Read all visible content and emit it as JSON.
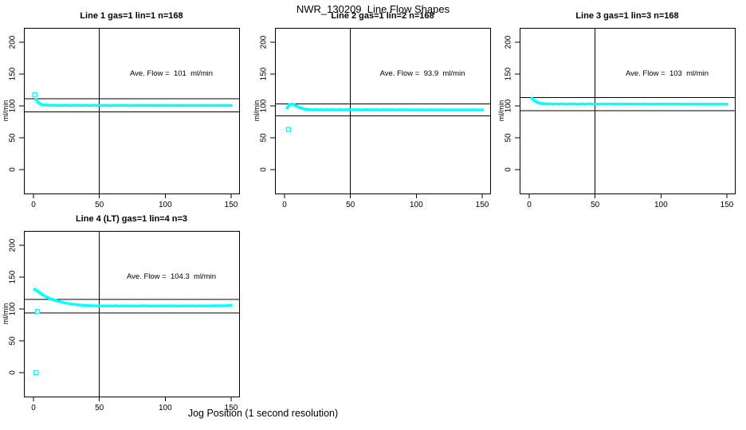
{
  "title": "NWR_130209  Line Flow Shapes",
  "xlabel": "Jog Position (1 second resolution)",
  "series_color": "#00FFFF",
  "axis_color": "#000000",
  "chart_data": [
    {
      "type": "scatter",
      "title": "Line 1 gas=1 lin=1 n=168",
      "annotation": "Ave. Flow =  101  ml/min",
      "ave_flow": 101,
      "ylabel": "ml/min",
      "marker": "open-square",
      "xticks": [
        0,
        50,
        100,
        150
      ],
      "yticks": [
        0,
        50,
        100,
        150,
        200
      ],
      "xlim": [
        -7,
        157
      ],
      "ylim": [
        -37,
        222
      ],
      "vline_x": 50,
      "hlines": [
        111.1,
        90.9
      ],
      "outliers": [
        [
          1,
          117.5
        ]
      ],
      "points": [
        [
          2,
          110
        ],
        [
          3,
          106.8
        ],
        [
          4,
          104.8
        ],
        [
          5,
          103.4
        ],
        [
          6,
          102.4
        ],
        [
          7,
          101.9
        ],
        [
          8,
          101.5
        ],
        [
          9,
          101.3
        ],
        [
          10,
          101.2
        ],
        [
          11,
          101.1
        ],
        [
          12,
          101.0
        ],
        [
          13,
          101.1
        ],
        [
          14,
          100.9
        ],
        [
          15,
          101.0
        ],
        [
          16,
          101.1
        ],
        [
          18,
          100.8
        ],
        [
          20,
          101.0
        ],
        [
          22,
          100.7
        ],
        [
          24,
          101.1
        ],
        [
          26,
          100.9
        ],
        [
          28,
          100.6
        ],
        [
          30,
          101.0
        ],
        [
          32,
          100.8
        ],
        [
          34,
          101.1
        ],
        [
          36,
          100.7
        ],
        [
          38,
          100.9
        ],
        [
          40,
          101.0
        ],
        [
          42,
          100.6
        ],
        [
          44,
          100.9
        ],
        [
          46,
          101.1
        ],
        [
          48,
          100.8
        ],
        [
          50,
          100.9
        ],
        [
          52,
          100.7
        ],
        [
          54,
          101.0
        ],
        [
          56,
          100.8
        ],
        [
          58,
          100.6
        ],
        [
          60,
          100.9
        ],
        [
          62,
          101.0
        ],
        [
          64,
          100.7
        ],
        [
          66,
          100.9
        ],
        [
          68,
          100.8
        ],
        [
          70,
          101.0
        ],
        [
          72,
          100.6
        ],
        [
          74,
          100.9
        ],
        [
          76,
          100.8
        ],
        [
          78,
          101.0
        ],
        [
          80,
          100.7
        ],
        [
          82,
          100.9
        ],
        [
          84,
          100.6
        ],
        [
          86,
          100.8
        ],
        [
          88,
          101.0
        ],
        [
          90,
          100.7
        ],
        [
          92,
          100.9
        ],
        [
          94,
          100.8
        ],
        [
          96,
          100.6
        ],
        [
          98,
          100.9
        ],
        [
          100,
          100.8
        ],
        [
          102,
          100.7
        ],
        [
          104,
          100.9
        ],
        [
          106,
          100.6
        ],
        [
          108,
          100.8
        ],
        [
          110,
          100.9
        ],
        [
          112,
          100.7
        ],
        [
          114,
          100.8
        ],
        [
          116,
          100.6
        ],
        [
          118,
          100.9
        ],
        [
          120,
          100.7
        ],
        [
          122,
          100.8
        ],
        [
          124,
          100.6
        ],
        [
          126,
          100.9
        ],
        [
          128,
          100.8
        ],
        [
          130,
          100.6
        ],
        [
          132,
          100.8
        ],
        [
          134,
          100.7
        ],
        [
          136,
          100.9
        ],
        [
          138,
          100.6
        ],
        [
          140,
          100.8
        ],
        [
          142,
          100.7
        ],
        [
          144,
          100.9
        ],
        [
          146,
          100.6
        ],
        [
          148,
          100.8
        ],
        [
          150,
          100.7
        ]
      ]
    },
    {
      "type": "scatter",
      "title": "Line 2 gas=1 lin=2 n=168",
      "annotation": "Ave. Flow =  93.9  ml/min",
      "ave_flow": 93.9,
      "ylabel": "ml/min",
      "marker": "open-square",
      "xticks": [
        0,
        50,
        100,
        150
      ],
      "yticks": [
        0,
        50,
        100,
        150,
        200
      ],
      "xlim": [
        -7,
        157
      ],
      "ylim": [
        -37,
        222
      ],
      "vline_x": 50,
      "hlines": [
        103.3,
        84.5
      ],
      "outliers": [
        [
          3,
          63
        ]
      ],
      "points": [
        [
          2,
          97
        ],
        [
          3,
          99.5
        ],
        [
          4,
          101.8
        ],
        [
          5,
          103
        ],
        [
          6,
          102.6
        ],
        [
          7,
          101.8
        ],
        [
          8,
          100.8
        ],
        [
          9,
          99.8
        ],
        [
          10,
          98.8
        ],
        [
          11,
          97.9
        ],
        [
          12,
          97.1
        ],
        [
          13,
          96.4
        ],
        [
          14,
          95.8
        ],
        [
          15,
          95.3
        ],
        [
          16,
          94.9
        ],
        [
          17,
          94.6
        ],
        [
          18,
          94.4
        ],
        [
          19,
          94.2
        ],
        [
          20,
          94.1
        ],
        [
          22,
          93.9
        ],
        [
          24,
          94.2
        ],
        [
          26,
          93.8
        ],
        [
          28,
          94.0
        ],
        [
          30,
          93.7
        ],
        [
          32,
          94.0
        ],
        [
          34,
          93.8
        ],
        [
          36,
          94.1
        ],
        [
          38,
          93.7
        ],
        [
          40,
          93.9
        ],
        [
          42,
          94.0
        ],
        [
          44,
          93.7
        ],
        [
          46,
          93.9
        ],
        [
          48,
          94.1
        ],
        [
          50,
          93.8
        ],
        [
          52,
          93.9
        ],
        [
          54,
          93.7
        ],
        [
          56,
          94.0
        ],
        [
          58,
          93.8
        ],
        [
          60,
          93.9
        ],
        [
          62,
          94.1
        ],
        [
          64,
          93.7
        ],
        [
          66,
          93.9
        ],
        [
          68,
          93.8
        ],
        [
          70,
          94.0
        ],
        [
          72,
          93.7
        ],
        [
          74,
          93.9
        ],
        [
          76,
          93.8
        ],
        [
          78,
          94.0
        ],
        [
          80,
          93.7
        ],
        [
          82,
          93.9
        ],
        [
          84,
          93.6
        ],
        [
          86,
          93.8
        ],
        [
          88,
          94.0
        ],
        [
          90,
          93.7
        ],
        [
          92,
          93.9
        ],
        [
          94,
          93.8
        ],
        [
          96,
          93.6
        ],
        [
          98,
          93.9
        ],
        [
          100,
          93.8
        ],
        [
          102,
          93.7
        ],
        [
          104,
          93.9
        ],
        [
          106,
          93.6
        ],
        [
          108,
          93.8
        ],
        [
          110,
          93.9
        ],
        [
          112,
          93.7
        ],
        [
          114,
          93.8
        ],
        [
          116,
          93.6
        ],
        [
          118,
          93.9
        ],
        [
          120,
          93.7
        ],
        [
          122,
          93.8
        ],
        [
          124,
          93.6
        ],
        [
          126,
          93.9
        ],
        [
          128,
          93.8
        ],
        [
          130,
          93.6
        ],
        [
          132,
          93.8
        ],
        [
          134,
          93.7
        ],
        [
          136,
          93.9
        ],
        [
          138,
          93.6
        ],
        [
          140,
          93.8
        ],
        [
          142,
          93.7
        ],
        [
          144,
          93.9
        ],
        [
          146,
          93.6
        ],
        [
          148,
          93.8
        ],
        [
          150,
          93.7
        ]
      ]
    },
    {
      "type": "scatter",
      "title": "Line 3 gas=1 lin=3 n=168",
      "annotation": "Ave. Flow =  103  ml/min",
      "ave_flow": 103,
      "ylabel": "ml/min",
      "marker": "open-square",
      "xticks": [
        0,
        50,
        100,
        150
      ],
      "yticks": [
        0,
        50,
        100,
        150,
        200
      ],
      "xlim": [
        -7,
        157
      ],
      "ylim": [
        -37,
        222
      ],
      "vline_x": 50,
      "hlines": [
        113.3,
        92.7
      ],
      "outliers": [],
      "points": [
        [
          2,
          112
        ],
        [
          3,
          110
        ],
        [
          4,
          108.2
        ],
        [
          5,
          106.8
        ],
        [
          6,
          105.8
        ],
        [
          7,
          105
        ],
        [
          8,
          104.4
        ],
        [
          9,
          104
        ],
        [
          10,
          103.7
        ],
        [
          11,
          103.5
        ],
        [
          12,
          103.3
        ],
        [
          13,
          103.2
        ],
        [
          14,
          103.1
        ],
        [
          16,
          103.2
        ],
        [
          18,
          102.9
        ],
        [
          20,
          103.1
        ],
        [
          22,
          102.8
        ],
        [
          24,
          103.2
        ],
        [
          26,
          103.0
        ],
        [
          28,
          102.7
        ],
        [
          30,
          103.1
        ],
        [
          32,
          102.9
        ],
        [
          34,
          103.2
        ],
        [
          36,
          102.8
        ],
        [
          38,
          103.0
        ],
        [
          40,
          103.1
        ],
        [
          42,
          102.7
        ],
        [
          44,
          103.0
        ],
        [
          46,
          103.2
        ],
        [
          48,
          102.9
        ],
        [
          50,
          103.0
        ],
        [
          52,
          102.8
        ],
        [
          54,
          103.1
        ],
        [
          56,
          102.9
        ],
        [
          58,
          102.7
        ],
        [
          60,
          103.0
        ],
        [
          62,
          103.1
        ],
        [
          64,
          102.8
        ],
        [
          66,
          103.0
        ],
        [
          68,
          102.9
        ],
        [
          70,
          103.1
        ],
        [
          72,
          102.7
        ],
        [
          74,
          103.0
        ],
        [
          76,
          102.9
        ],
        [
          78,
          103.1
        ],
        [
          80,
          102.8
        ],
        [
          82,
          103.0
        ],
        [
          84,
          102.7
        ],
        [
          86,
          102.9
        ],
        [
          88,
          103.1
        ],
        [
          90,
          102.8
        ],
        [
          92,
          103.0
        ],
        [
          94,
          102.9
        ],
        [
          96,
          102.7
        ],
        [
          98,
          103.0
        ],
        [
          100,
          102.9
        ],
        [
          102,
          102.8
        ],
        [
          104,
          103.0
        ],
        [
          106,
          102.7
        ],
        [
          108,
          102.9
        ],
        [
          110,
          103.0
        ],
        [
          112,
          102.8
        ],
        [
          114,
          102.9
        ],
        [
          116,
          102.7
        ],
        [
          118,
          103.0
        ],
        [
          120,
          102.8
        ],
        [
          122,
          102.9
        ],
        [
          124,
          102.7
        ],
        [
          126,
          103.0
        ],
        [
          128,
          102.9
        ],
        [
          130,
          102.7
        ],
        [
          132,
          102.9
        ],
        [
          134,
          102.8
        ],
        [
          136,
          103.0
        ],
        [
          138,
          102.7
        ],
        [
          140,
          102.9
        ],
        [
          142,
          102.8
        ],
        [
          144,
          103.0
        ],
        [
          146,
          102.7
        ],
        [
          148,
          102.9
        ],
        [
          150,
          102.8
        ]
      ]
    },
    {
      "type": "scatter",
      "title": "Line 4 (LT) gas=1 lin=4 n=3",
      "annotation": "Ave. Flow =  104.3  ml/min",
      "ave_flow": 104.3,
      "ylabel": "ml/min",
      "marker": "open-square",
      "xticks": [
        0,
        50,
        100,
        150
      ],
      "yticks": [
        0,
        50,
        100,
        150,
        200
      ],
      "xlim": [
        -7,
        157
      ],
      "ylim": [
        -37,
        222
      ],
      "vline_x": 50,
      "hlines": [
        114.7,
        93.9
      ],
      "outliers": [
        [
          2,
          0
        ],
        [
          3,
          96
        ]
      ],
      "points": [
        [
          1,
          131
        ],
        [
          2,
          129.5
        ],
        [
          3,
          128
        ],
        [
          4,
          126.5
        ],
        [
          5,
          125
        ],
        [
          6,
          123.6
        ],
        [
          7,
          122.3
        ],
        [
          8,
          121
        ],
        [
          9,
          119.9
        ],
        [
          10,
          118.8
        ],
        [
          11,
          117.8
        ],
        [
          12,
          116.9
        ],
        [
          13,
          116
        ],
        [
          14,
          115.2
        ],
        [
          15,
          114.5
        ],
        [
          16,
          113.8
        ],
        [
          17,
          113.2
        ],
        [
          18,
          112.6
        ],
        [
          19,
          112
        ],
        [
          20,
          111.5
        ],
        [
          22,
          110.5
        ],
        [
          24,
          109.6
        ],
        [
          26,
          108.8
        ],
        [
          28,
          108.1
        ],
        [
          30,
          107.5
        ],
        [
          32,
          107
        ],
        [
          34,
          106.5
        ],
        [
          36,
          106.1
        ],
        [
          38,
          105.8
        ],
        [
          40,
          105.5
        ],
        [
          42,
          105.3
        ],
        [
          44,
          105.1
        ],
        [
          46,
          105
        ],
        [
          48,
          104.8
        ],
        [
          50,
          104.9
        ],
        [
          52,
          104.7
        ],
        [
          54,
          105
        ],
        [
          56,
          104.6
        ],
        [
          58,
          104.9
        ],
        [
          60,
          104.7
        ],
        [
          62,
          105.1
        ],
        [
          64,
          104.8
        ],
        [
          66,
          104.6
        ],
        [
          68,
          105
        ],
        [
          70,
          104.7
        ],
        [
          72,
          104.9
        ],
        [
          74,
          104.6
        ],
        [
          76,
          105
        ],
        [
          78,
          104.8
        ],
        [
          80,
          104.6
        ],
        [
          82,
          104.9
        ],
        [
          84,
          105.1
        ],
        [
          86,
          104.7
        ],
        [
          88,
          104.9
        ],
        [
          90,
          104.6
        ],
        [
          92,
          105
        ],
        [
          94,
          104.8
        ],
        [
          96,
          104.7
        ],
        [
          98,
          105
        ],
        [
          100,
          104.6
        ],
        [
          102,
          104.9
        ],
        [
          104,
          104.7
        ],
        [
          106,
          105
        ],
        [
          108,
          104.8
        ],
        [
          110,
          104.6
        ],
        [
          112,
          105
        ],
        [
          114,
          104.7
        ],
        [
          116,
          104.9
        ],
        [
          118,
          104.6
        ],
        [
          120,
          105
        ],
        [
          122,
          104.8
        ],
        [
          124,
          104.7
        ],
        [
          126,
          105
        ],
        [
          128,
          104.6
        ],
        [
          130,
          104.9
        ],
        [
          132,
          104.7
        ],
        [
          134,
          105
        ],
        [
          136,
          104.8
        ],
        [
          138,
          105.1
        ],
        [
          140,
          104.9
        ],
        [
          142,
          105.2
        ],
        [
          144,
          105
        ],
        [
          146,
          105.3
        ],
        [
          148,
          105.5
        ],
        [
          150,
          105.8
        ]
      ]
    }
  ]
}
